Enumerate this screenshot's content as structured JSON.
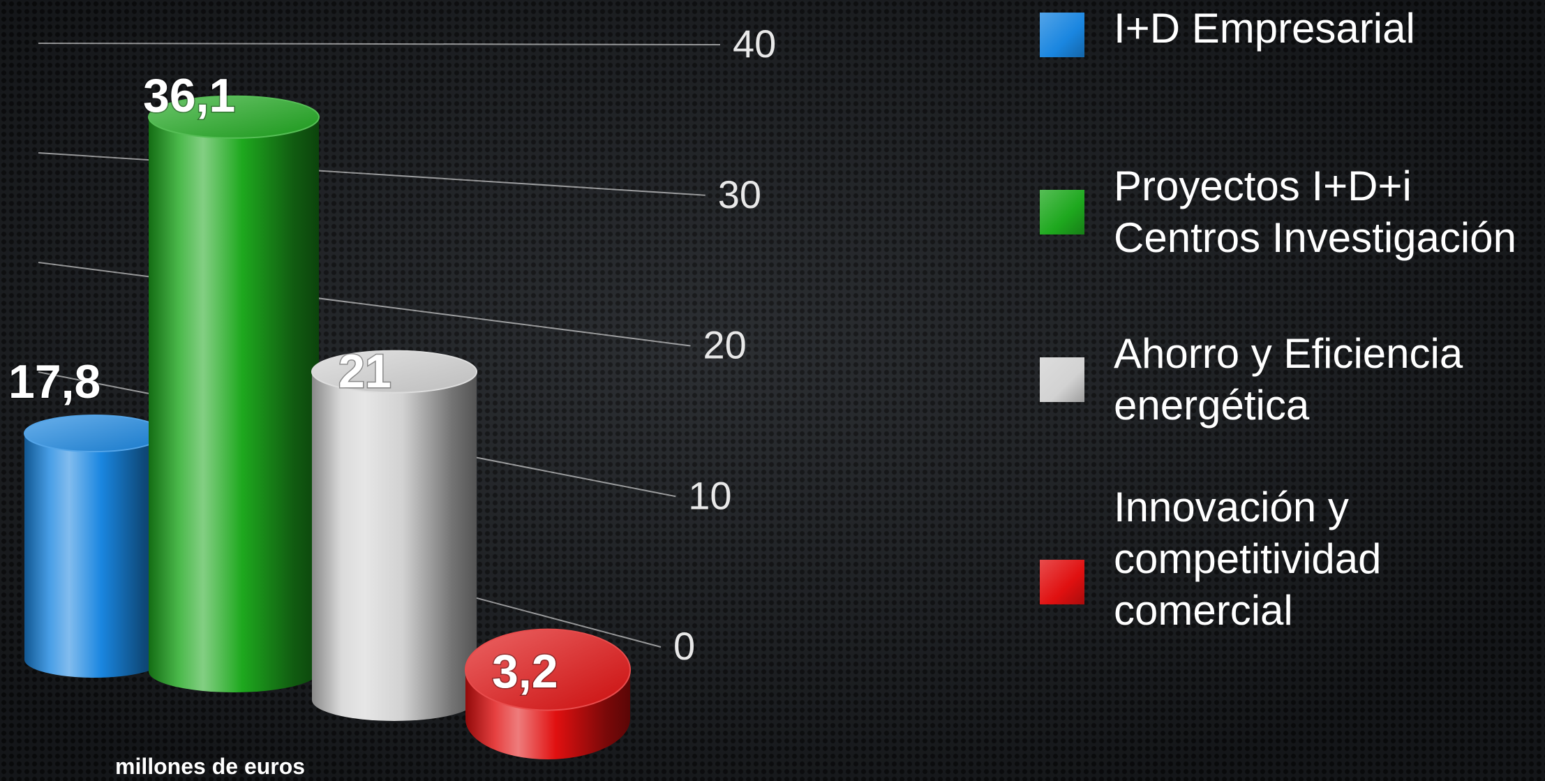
{
  "chart_data": {
    "type": "bar",
    "style": "3d-cylinder",
    "categories": [
      "I+D Empresarial",
      "Proyectos I+D+i\nCentros Investigación",
      "Ahorro y Eficiencia\nenergética",
      "Innovación y\ncompetitividad\ncomercial"
    ],
    "values": [
      17.8,
      36.1,
      21,
      3.2
    ],
    "value_labels": [
      "17,8",
      "36,1",
      "21",
      "3,2"
    ],
    "colors": [
      "#1a86e0",
      "#1ea81e",
      "#d2d2d2",
      "#e01010"
    ],
    "yticks": [
      "0",
      "10",
      "20",
      "30",
      "40"
    ],
    "ylim": [
      0,
      40
    ],
    "unit_label": "millones de euros",
    "grid": true,
    "legend_position": "right"
  }
}
